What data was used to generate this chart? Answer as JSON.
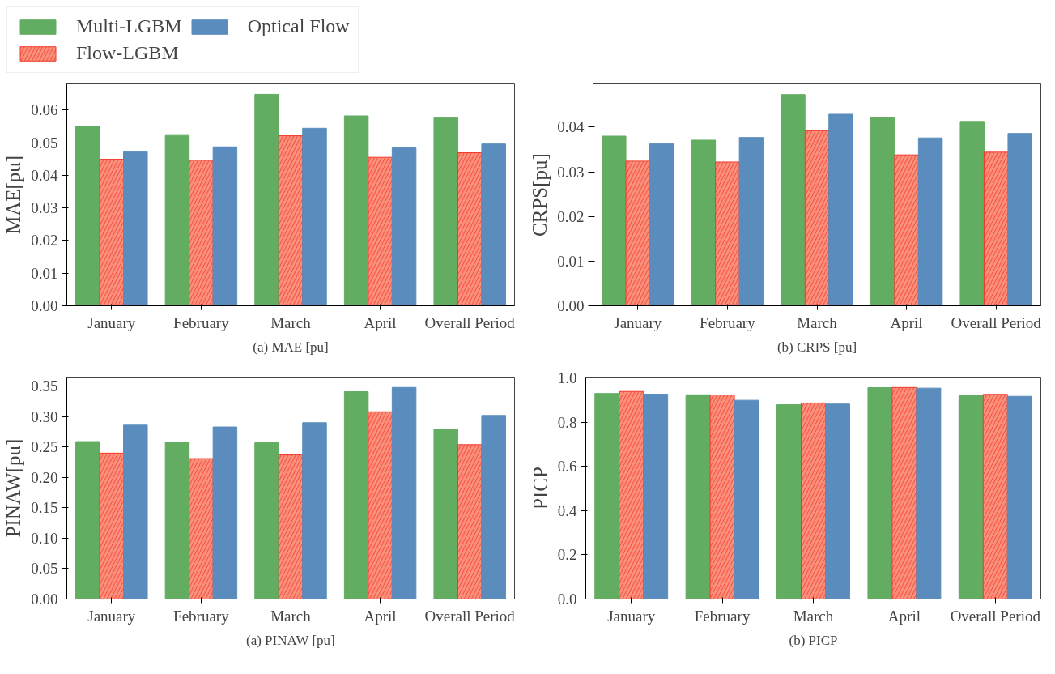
{
  "chart_data": [
    {
      "type": "bar",
      "title": "(a) MAE [pu]",
      "ylabel": "MAE[pu]",
      "categories": [
        "January",
        "February",
        "March",
        "April",
        "Overall Period"
      ],
      "ylim": [
        0,
        0.068
      ],
      "yticks": [
        {
          "value": 0,
          "label": "0.00"
        },
        0.01,
        0.02,
        0.03,
        0.04,
        0.05,
        0.06
      ],
      "grid": false,
      "legend": "top left",
      "series": [
        {
          "name": "Multi-LGBM",
          "color": "#62ad62",
          "values": [
            0.055,
            0.0522,
            0.0648,
            0.0582,
            0.0576
          ]
        },
        {
          "name": "Flow-LGBM",
          "color": "#fa8f7b",
          "values": [
            0.0449,
            0.0446,
            0.0521,
            0.0455,
            0.0469
          ]
        },
        {
          "name": "Optical Flow",
          "color": "#5a8dbd",
          "values": [
            0.0472,
            0.0487,
            0.0544,
            0.0484,
            0.0496
          ]
        }
      ]
    },
    {
      "type": "bar",
      "title": "(b) CRPS [pu]",
      "ylabel": "CRPS[pu]",
      "categories": [
        "January",
        "February",
        "March",
        "April",
        "Overall Period"
      ],
      "ylim": [
        0,
        0.0497
      ],
      "yticks": [
        {
          "value": 0,
          "label": "0.00"
        },
        0.01,
        0.02,
        0.03,
        {
          "value": 0.04,
          "label": "0.04"
        }
      ],
      "grid": false,
      "series": [
        {
          "color": "#62ad62",
          "values": [
            0.038,
            0.0371,
            0.0473,
            0.0422,
            0.0413
          ]
        },
        {
          "color": "#fa8f7b",
          "values": [
            0.0324,
            0.0322,
            0.0392,
            0.0338,
            0.0344
          ]
        },
        {
          "color": "#5a8dbd",
          "values": [
            0.0363,
            0.0377,
            0.0429,
            0.0376,
            0.0386
          ]
        }
      ]
    },
    {
      "type": "bar",
      "title": "(a) PINAW [pu]",
      "ylabel": "PINAW[pu]",
      "categories": [
        "January",
        "February",
        "March",
        "April",
        "Overall Period"
      ],
      "ylim": [
        0,
        0.365
      ],
      "yticks": [
        {
          "value": 0,
          "label": "0.00"
        },
        0.05,
        {
          "value": 0.1,
          "label": "0.10"
        },
        0.15,
        {
          "value": 0.2,
          "label": "0.20"
        },
        0.25,
        {
          "value": 0.3,
          "label": "0.30"
        },
        0.35
      ],
      "grid": false,
      "series": [
        {
          "color": "#62ad62",
          "values": [
            0.259,
            0.258,
            0.257,
            0.341,
            0.279
          ]
        },
        {
          "color": "#fa8f7b",
          "values": [
            0.24,
            0.231,
            0.237,
            0.308,
            0.254
          ]
        },
        {
          "color": "#5a8dbd",
          "values": [
            0.286,
            0.283,
            0.29,
            0.348,
            0.302
          ]
        }
      ]
    },
    {
      "type": "bar",
      "title": "(b) PICP",
      "ylabel": "PICP",
      "categories": [
        "January",
        "February",
        "March",
        "April",
        "Overall Period"
      ],
      "ylim": [
        0,
        1.005
      ],
      "yticks": [
        {
          "value": 0,
          "label": "0.0"
        },
        0.2,
        0.4,
        0.6,
        0.8,
        {
          "value": 1,
          "label": "1.0"
        }
      ],
      "grid": false,
      "series": [
        {
          "color": "#62ad62",
          "values": [
            0.931,
            0.925,
            0.88,
            0.957,
            0.924
          ]
        },
        {
          "color": "#fa8f7b",
          "values": [
            0.94,
            0.924,
            0.888,
            0.958,
            0.927
          ]
        },
        {
          "color": "#5a8dbd",
          "values": [
            0.928,
            0.9,
            0.883,
            0.955,
            0.918
          ]
        }
      ]
    }
  ]
}
